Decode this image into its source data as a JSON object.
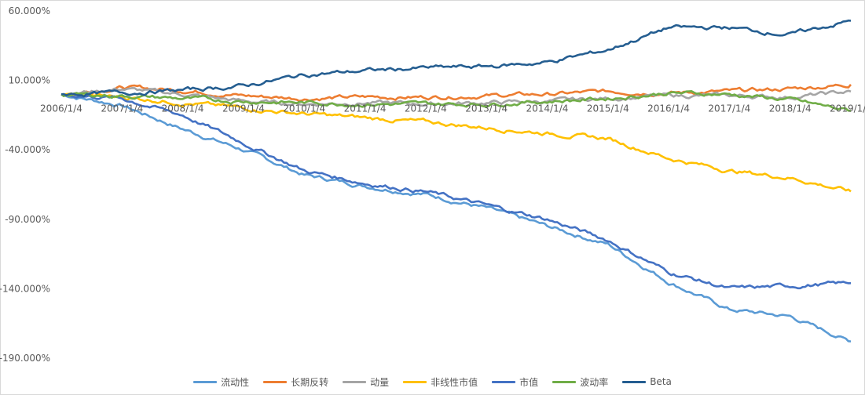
{
  "chart_data": {
    "type": "line",
    "title": "",
    "xlabel": "",
    "ylabel": "",
    "ylim": [
      -190,
      60
    ],
    "y_ticks": [
      60,
      10,
      -40,
      -90,
      -140,
      -190
    ],
    "y_tick_labels": [
      "60.000%",
      "10.000%",
      "-40.000%",
      "-90.000%",
      "-140.000%",
      "-190.000%"
    ],
    "x_tick_labels": [
      "2006/1/4",
      "2007/1/4",
      "2008/1/4",
      "2009/1/4",
      "2010/1/4",
      "2011/1/4",
      "2012/1/4",
      "2013/1/4",
      "2014/1/4",
      "2015/1/4",
      "2016/1/4",
      "2017/1/4",
      "2018/1/4",
      "2019/1/4"
    ],
    "x": [
      "2006",
      "2007",
      "2008",
      "2009",
      "2010",
      "2011",
      "2012",
      "2013",
      "2014",
      "2015",
      "2016",
      "2017",
      "2018",
      "2019"
    ],
    "grid": false,
    "legend_position": "bottom",
    "series": [
      {
        "name": "流动性",
        "color": "#5b9bd5",
        "values": [
          0,
          -8,
          -25,
          -40,
          -58,
          -66,
          -72,
          -82,
          -95,
          -108,
          -135,
          -155,
          -160,
          -178
        ]
      },
      {
        "name": "长期反转",
        "color": "#ed7d31",
        "values": [
          0,
          5,
          3,
          -1,
          -3,
          -2,
          -2,
          -1,
          0,
          2,
          1,
          2,
          4,
          7
        ]
      },
      {
        "name": "动量",
        "color": "#a5a5a5",
        "values": [
          0,
          4,
          0,
          -5,
          -7,
          -6,
          -7,
          -6,
          -5,
          -3,
          -1,
          -1,
          -2,
          2
        ]
      },
      {
        "name": "非线性市值",
        "color": "#ffc000",
        "values": [
          0,
          -2,
          -6,
          -10,
          -14,
          -17,
          -20,
          -24,
          -28,
          -32,
          -46,
          -55,
          -60,
          -70
        ]
      },
      {
        "name": "市值",
        "color": "#4472c4",
        "values": [
          0,
          -3,
          -15,
          -35,
          -55,
          -64,
          -70,
          -80,
          -90,
          -105,
          -128,
          -140,
          -138,
          -136
        ]
      },
      {
        "name": "波动率",
        "color": "#70ad47",
        "values": [
          0,
          -1,
          -3,
          -5,
          -6,
          -7,
          -7,
          -7,
          -5,
          -3,
          1,
          0,
          -4,
          -12
        ]
      },
      {
        "name": "Beta",
        "color": "#255e91",
        "values": [
          0,
          1,
          3,
          6,
          14,
          17,
          19,
          20,
          23,
          32,
          48,
          48,
          43,
          53
        ]
      }
    ]
  }
}
